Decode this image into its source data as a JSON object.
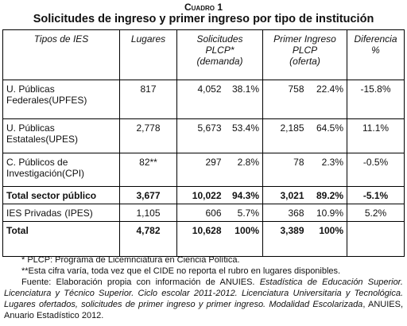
{
  "header": {
    "kicker": "Cuadro 1",
    "title": "Solicitudes de ingreso y primer ingreso por tipo de institución"
  },
  "table": {
    "columns": [
      {
        "lines": [
          "Tipos de IES"
        ]
      },
      {
        "lines": [
          "Lugares"
        ]
      },
      {
        "lines": [
          "Solicitudes",
          "PLCP*",
          "(demanda)"
        ]
      },
      {
        "lines": [
          "Primer Ingreso",
          "PLCP",
          "(oferta)"
        ]
      },
      {
        "lines": [
          "Diferencia",
          "%"
        ]
      }
    ],
    "rows": [
      {
        "label": "U. Públicas Federales",
        "abbr": "(UPFES)",
        "cells": [
          "817",
          "4,052",
          "38.1%",
          "758",
          "22.4%",
          "-15.8%"
        ]
      },
      {
        "label": "U. Públicas Estatales",
        "abbr": "(UPES)",
        "cells": [
          "2,778",
          "5,673",
          "53.4%",
          "2,185",
          "64.5%",
          "11.1%"
        ]
      },
      {
        "label": "C. Públicos de Investigación",
        "abbr": "(CPI)",
        "cells": [
          "82**",
          "297",
          "2.8%",
          "78",
          "2.3%",
          "-0.5%"
        ]
      },
      {
        "label": "Total sector público",
        "bold": true,
        "cells": [
          "3,677",
          "10,022",
          "94.3%",
          "3,021",
          "89.2%",
          "-5.1%"
        ]
      },
      {
        "label": "IES Privadas",
        "abbr": "(IPES)",
        "cells": [
          "1,105",
          "606",
          "5.7%",
          "368",
          "10.9%",
          "5.2%"
        ]
      },
      {
        "label": "Total",
        "bold": true,
        "cells": [
          "4,782",
          "10,628",
          "100%",
          "3,389",
          "100%"
        ]
      }
    ]
  },
  "notes": {
    "plcp": "* PLCP: Programa de Licemnciatura en Ciencia Política.",
    "cide": "**Esta cifra varía, toda vez que el CIDE no reporta el rubro en lugares disponibles.",
    "source": [
      "Fuente: Elaboración propia con información de ANUIES. ",
      "Estadística de Educación Superior. Licenciatura y Técnico Superior. Ciclo escolar 2011-2012. Licenciatura Universitaria y Tecnológica. Lugares ofertados, solicitudes de primer ingreso y primer ingreso. Modalidad Escolarizada",
      ", ANUIES, Anuario Estadístico 2012."
    ]
  }
}
